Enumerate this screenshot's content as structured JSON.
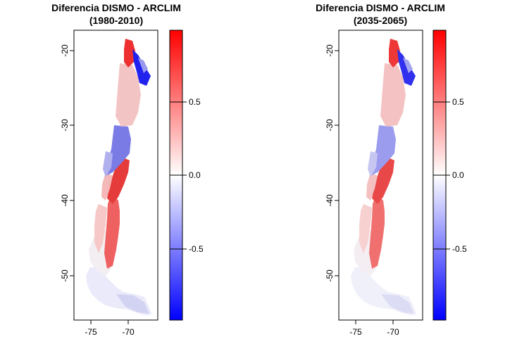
{
  "panels": [
    {
      "title_line1": "Diferencia DISMO - ARCLIM",
      "title_line2": "(1980-2010)",
      "x_ticks": [
        "-75",
        "-70"
      ],
      "y_ticks": [
        "-20",
        "-30",
        "-40",
        "-50"
      ],
      "legend_ticks": [
        "0.5",
        "0.0",
        "-0.5"
      ]
    },
    {
      "title_line1": "Diferencia DISMO - ARCLIM",
      "title_line2": "(2035-2065)",
      "x_ticks": [
        "-75",
        "-70"
      ],
      "y_ticks": [
        "-20",
        "-30",
        "-40",
        "-50"
      ],
      "legend_ticks": [
        "0.5",
        "0.0",
        "-0.5"
      ]
    }
  ],
  "colors": {
    "high": "#ff0000",
    "mid": "#ffffff",
    "low": "#0000ff"
  }
}
